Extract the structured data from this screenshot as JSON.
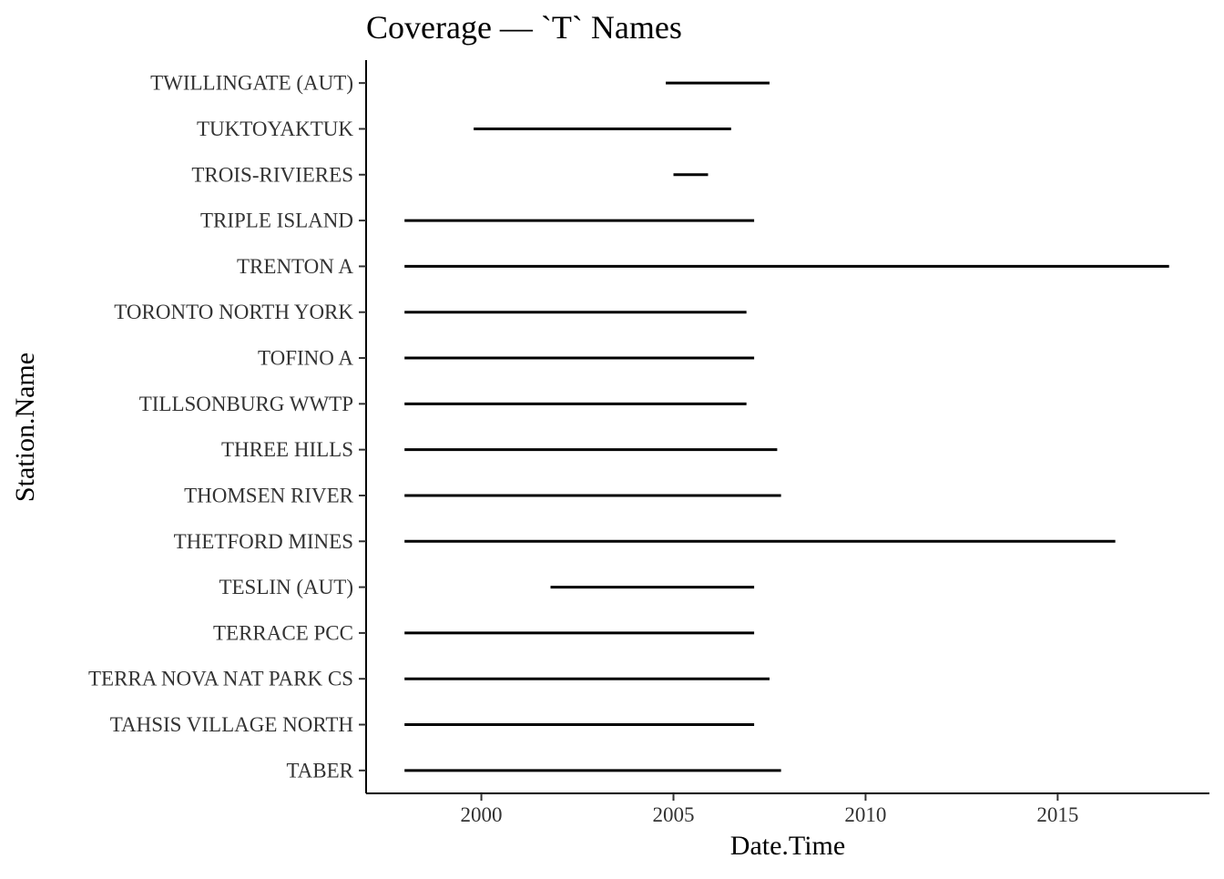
{
  "chart_data": {
    "type": "range",
    "title": "Coverage — `T` Names",
    "xlabel": "Date.Time",
    "ylabel": "Station.Name",
    "xlim": [
      1997.0,
      2018.95
    ],
    "x_ticks": [
      2000,
      2005,
      2010,
      2015
    ],
    "grid": false,
    "line_color": "#000000",
    "categories": [
      "TABER",
      "TAHSIS VILLAGE NORTH",
      "TERRA NOVA NAT PARK CS",
      "TERRACE PCC",
      "TESLIN (AUT)",
      "THETFORD MINES",
      "THOMSEN RIVER",
      "THREE HILLS",
      "TILLSONBURG WWTP",
      "TOFINO A",
      "TORONTO NORTH YORK",
      "TRENTON A",
      "TRIPLE ISLAND",
      "TROIS-RIVIERES",
      "TUKTOYAKTUK",
      "TWILLINGATE (AUT)"
    ],
    "ranges": [
      {
        "station": "TABER",
        "start": 1998.0,
        "end": 2007.8
      },
      {
        "station": "TAHSIS VILLAGE NORTH",
        "start": 1998.0,
        "end": 2007.1
      },
      {
        "station": "TERRA NOVA NAT PARK CS",
        "start": 1998.0,
        "end": 2007.5
      },
      {
        "station": "TERRACE PCC",
        "start": 1998.0,
        "end": 2007.1
      },
      {
        "station": "TESLIN (AUT)",
        "start": 2001.8,
        "end": 2007.1
      },
      {
        "station": "THETFORD MINES",
        "start": 1998.0,
        "end": 2016.5
      },
      {
        "station": "THOMSEN RIVER",
        "start": 1998.0,
        "end": 2007.8
      },
      {
        "station": "THREE HILLS",
        "start": 1998.0,
        "end": 2007.7
      },
      {
        "station": "TILLSONBURG WWTP",
        "start": 1998.0,
        "end": 2006.9
      },
      {
        "station": "TOFINO A",
        "start": 1998.0,
        "end": 2007.1
      },
      {
        "station": "TORONTO NORTH YORK",
        "start": 1998.0,
        "end": 2006.9
      },
      {
        "station": "TRENTON A",
        "start": 1998.0,
        "end": 2017.9
      },
      {
        "station": "TRIPLE ISLAND",
        "start": 1998.0,
        "end": 2007.1
      },
      {
        "station": "TROIS-RIVIERES",
        "start": 2005.0,
        "end": 2005.9
      },
      {
        "station": "TUKTOYAKTUK",
        "start": 1999.8,
        "end": 2006.5
      },
      {
        "station": "TWILLINGATE (AUT)",
        "start": 2004.8,
        "end": 2007.5
      }
    ]
  }
}
